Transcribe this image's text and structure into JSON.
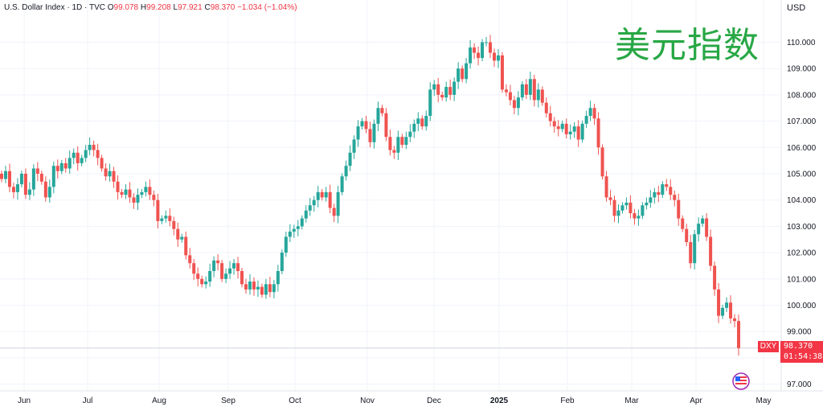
{
  "header": {
    "title": "U.S. Dollar Index · 1D · TVC",
    "o_label": "O",
    "o_val": "99.078",
    "h_label": "H",
    "h_val": "99.208",
    "l_label": "L",
    "l_val": "97.921",
    "c_label": "C",
    "c_val": "98.370",
    "chg": "−1.034 (−1.04%)"
  },
  "overlay_title": "美元指数",
  "currency": "USD",
  "price_tag": {
    "symbol": "DXY",
    "price": "98.370",
    "countdown": "01:54:38"
  },
  "colors": {
    "up": "#26a69a",
    "down": "#ef5350",
    "tag": "#f23645",
    "title_green": "#28a745"
  },
  "icons": {
    "watermark": "tradingview-flag-icon"
  },
  "chart_data": {
    "type": "candlestick",
    "title": "",
    "ylim": [
      96.7,
      111.0
    ],
    "y_ticks": [
      "97.000",
      "98.000",
      "99.000",
      "100.000",
      "101.000",
      "102.000",
      "103.000",
      "104.000",
      "105.000",
      "106.000",
      "107.000",
      "108.000",
      "109.000",
      "110.000"
    ],
    "x_ticks": [
      "Jun",
      "Jul",
      "Aug",
      "Sep",
      "Oct",
      "Nov",
      "Dec",
      "2025",
      "Feb",
      "Mar",
      "Apr",
      "May"
    ],
    "last_price": 98.37,
    "closes": [
      104.8,
      105.1,
      104.5,
      104.3,
      104.6,
      105.0,
      104.2,
      104.4,
      105.2,
      105.0,
      104.7,
      104.1,
      104.5,
      105.3,
      105.1,
      105.4,
      105.2,
      105.6,
      105.8,
      105.4,
      105.6,
      105.9,
      106.1,
      105.9,
      105.6,
      105.2,
      104.9,
      105.1,
      104.7,
      104.3,
      104.2,
      104.4,
      104.1,
      103.9,
      104.2,
      104.3,
      104.5,
      104.2,
      104.0,
      103.2,
      103.3,
      103.4,
      103.2,
      102.9,
      102.5,
      102.6,
      101.9,
      101.6,
      101.2,
      101.0,
      100.8,
      100.9,
      101.3,
      101.7,
      101.6,
      101.0,
      101.2,
      101.4,
      101.6,
      101.3,
      100.8,
      100.6,
      100.9,
      100.6,
      100.7,
      100.4,
      100.8,
      100.5,
      100.8,
      101.3,
      102.0,
      102.6,
      102.8,
      102.9,
      103.0,
      103.3,
      103.6,
      103.8,
      104.0,
      104.3,
      104.1,
      104.3,
      103.7,
      103.4,
      104.3,
      104.9,
      105.3,
      105.8,
      106.3,
      106.8,
      107.0,
      106.7,
      106.2,
      106.9,
      107.5,
      107.3,
      106.4,
      105.9,
      105.8,
      106.4,
      106.1,
      106.4,
      106.6,
      106.9,
      107.1,
      106.8,
      107.2,
      108.2,
      108.4,
      108.0,
      107.9,
      108.3,
      108.0,
      108.5,
      109.0,
      108.6,
      109.2,
      109.8,
      109.6,
      109.4,
      110.0,
      110.0,
      109.6,
      109.3,
      109.5,
      108.2,
      108.1,
      107.8,
      107.5,
      107.9,
      108.4,
      108.0,
      108.6,
      107.8,
      108.2,
      107.7,
      107.3,
      107.0,
      106.8,
      106.7,
      106.9,
      106.5,
      106.6,
      106.8,
      106.3,
      106.9,
      107.2,
      107.5,
      107.1,
      106.0,
      104.9,
      104.1,
      104.0,
      103.4,
      103.6,
      103.8,
      103.9,
      103.5,
      103.3,
      103.4,
      103.8,
      103.9,
      104.1,
      104.3,
      104.2,
      104.6,
      104.5,
      104.2,
      104.0,
      103.3,
      102.9,
      102.4,
      101.6,
      102.7,
      103.1,
      103.3,
      102.6,
      101.5,
      100.6,
      99.6,
      99.9,
      100.1,
      99.5,
      99.4,
      98.37
    ]
  }
}
